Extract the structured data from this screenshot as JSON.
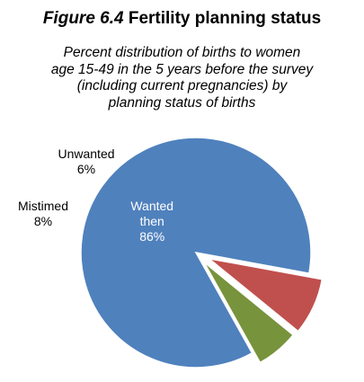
{
  "figure": {
    "number": "Figure 6.4",
    "title": "Fertility planning status",
    "subtitle_lines": [
      "Percent distribution of births to women",
      "age 15-49 in the 5 years before the survey",
      "(including current pregnancies) by",
      "planning status of births"
    ]
  },
  "chart_data": {
    "type": "pie",
    "title": "Fertility planning status",
    "subtitle": "Percent distribution of births to women age 15-49 in the 5 years before the survey (including current pregnancies) by planning status of births",
    "unit": "%",
    "slices": [
      {
        "label_lines": [
          "Wanted",
          "then"
        ],
        "value": 86,
        "value_text": "86%",
        "color": "#4f81bd",
        "label_position": "inside"
      },
      {
        "label_lines": [
          "Mistimed"
        ],
        "value": 8,
        "value_text": "8%",
        "color": "#c0504d",
        "label_position": "outside"
      },
      {
        "label_lines": [
          "Unwanted"
        ],
        "value": 6,
        "value_text": "6%",
        "color": "#77933c",
        "label_position": "outside"
      }
    ]
  }
}
